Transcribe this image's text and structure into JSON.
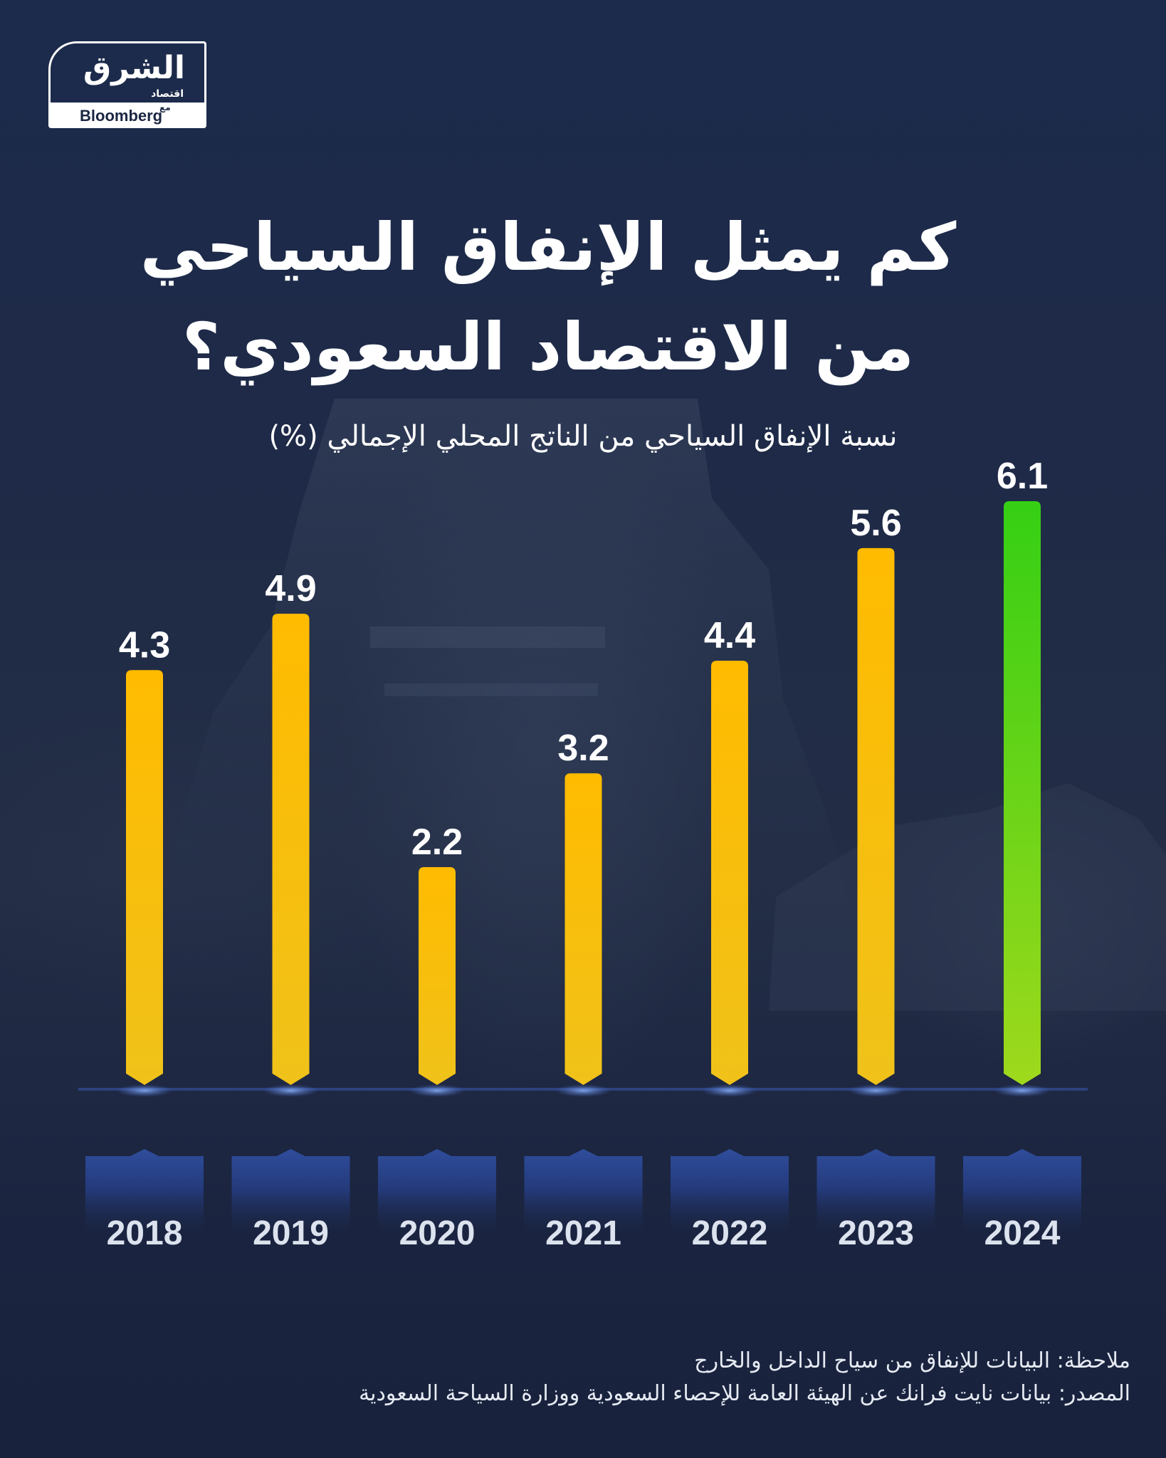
{
  "brand": {
    "logo_text": "الشرق",
    "logo_sub": "اقتصاد",
    "partner_prefix": "مع",
    "partner": "Bloomberg"
  },
  "title_line1": "كم يمثل الإنفاق السياحي",
  "title_line2": "من الاقتصاد السعودي؟",
  "subtitle": "نسبة الإنفاق السياحي من الناتج المحلي الإجمالي (%)",
  "note": "ملاحظة: البيانات للإنفاق من سياح الداخل والخارج",
  "source": "المصدر: بيانات نايت فرانك عن الهيئة العامة للإحصاء السعودية ووزارة السياحة السعودية",
  "chart_data": {
    "type": "bar",
    "categories": [
      "2018",
      "2019",
      "2020",
      "2021",
      "2022",
      "2023",
      "2024"
    ],
    "values": [
      4.3,
      4.9,
      2.2,
      3.2,
      4.4,
      5.6,
      6.1
    ],
    "value_labels": [
      "4.3",
      "4.9",
      "2.2",
      "3.2",
      "4.4",
      "5.6",
      "6.1"
    ],
    "highlight_category": "2024",
    "colors": {
      "bar": "#fbb900",
      "bar_highlight": "#3fd11a",
      "year_badge": "#253a78",
      "year_text": "#dce3ee",
      "label_text": "#ffffff"
    },
    "grid": false,
    "ylim": [
      0,
      6.1
    ]
  }
}
